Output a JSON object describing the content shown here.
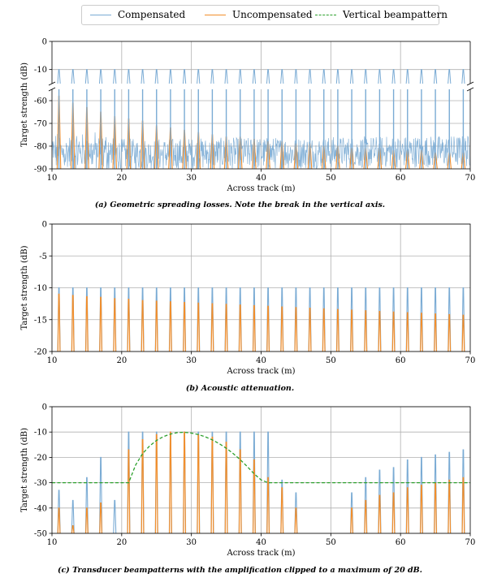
{
  "legend": {
    "items": [
      {
        "label": "Compensated",
        "color": "#7aabd4",
        "style": "solid"
      },
      {
        "label": "Uncompensated",
        "color": "#f28e2b",
        "style": "solid"
      },
      {
        "label": "Vertical beampattern",
        "color": "#2ca02c",
        "style": "dashed"
      }
    ]
  },
  "captions": {
    "a": "(a) Geometric spreading losses. Note the break in the vertical axis.",
    "b": "(b) Acoustic attenuation.",
    "c": "(c) Transducer beampatterns with the amplification clipped to a maximum of 20 dB."
  },
  "chart_data": [
    {
      "id": "a",
      "type": "line",
      "xlabel": "Across track (m)",
      "ylabel": "Target strength (dB)",
      "xlim": [
        10,
        70
      ],
      "xticks": [
        10,
        20,
        30,
        40,
        50,
        60,
        70
      ],
      "broken_axis": true,
      "upper_ylim": [
        -15,
        0
      ],
      "upper_yticks": [
        0,
        -10
      ],
      "lower_ylim": [
        -90,
        -55
      ],
      "lower_yticks": [
        -60,
        -70,
        -80,
        -90
      ],
      "grid": true,
      "target_positions": [
        11,
        13,
        15,
        17,
        19,
        21,
        23,
        25,
        27,
        29,
        31,
        33,
        35,
        37,
        39,
        41,
        43,
        45,
        47,
        49,
        51,
        53,
        55,
        57,
        59,
        61,
        63,
        65,
        67,
        69
      ],
      "compensated_peak": -10,
      "compensated_noise_range": [
        -90,
        -73
      ],
      "uncompensated_peaks": [
        -58,
        -61,
        -63,
        -65,
        -67,
        -68,
        -69,
        -71,
        -72,
        -73,
        -74,
        -75,
        -76,
        -76,
        -77,
        -78,
        -78,
        -79,
        -79,
        -80,
        -80,
        -81,
        -81,
        -81,
        -82,
        -82,
        -82,
        -83,
        -83,
        -83
      ]
    },
    {
      "id": "b",
      "type": "line",
      "xlabel": "Across track (m)",
      "ylabel": "Target strength (dB)",
      "xlim": [
        10,
        70
      ],
      "xticks": [
        10,
        20,
        30,
        40,
        50,
        60,
        70
      ],
      "ylim": [
        -20,
        0
      ],
      "yticks": [
        0,
        -5,
        -10,
        -15,
        -20
      ],
      "grid": true,
      "target_positions": [
        11,
        13,
        15,
        17,
        19,
        21,
        23,
        25,
        27,
        29,
        31,
        33,
        35,
        37,
        39,
        41,
        43,
        45,
        47,
        49,
        51,
        53,
        55,
        57,
        59,
        61,
        63,
        65,
        67,
        69
      ],
      "compensated_peak": -10,
      "uncompensated_peaks": [
        -11.0,
        -11.2,
        -11.4,
        -11.5,
        -11.7,
        -11.8,
        -12.0,
        -12.1,
        -12.2,
        -12.3,
        -12.4,
        -12.5,
        -12.6,
        -12.7,
        -12.8,
        -12.9,
        -13.0,
        -13.1,
        -13.2,
        -13.3,
        -13.4,
        -13.5,
        -13.6,
        -13.7,
        -13.8,
        -13.9,
        -14.0,
        -14.1,
        -14.2,
        -14.3
      ]
    },
    {
      "id": "c",
      "type": "line",
      "xlabel": "Across track (m)",
      "ylabel": "Target strength (dB)",
      "xlim": [
        10,
        70
      ],
      "xticks": [
        10,
        20,
        30,
        40,
        50,
        60,
        70
      ],
      "ylim": [
        -50,
        0
      ],
      "yticks": [
        0,
        -10,
        -20,
        -30,
        -40,
        -50
      ],
      "grid": true,
      "target_positions": [
        11,
        13,
        15,
        17,
        19,
        21,
        23,
        25,
        27,
        29,
        31,
        33,
        35,
        37,
        39,
        41,
        43,
        45,
        47,
        49,
        51,
        53,
        55,
        57,
        59,
        61,
        63,
        65,
        67,
        69
      ],
      "compensated_peaks": [
        -33,
        -37,
        -28,
        -20,
        -37,
        -10,
        -10,
        -10,
        -10,
        -10,
        -10,
        -10,
        -10,
        -10,
        -10,
        -10,
        -29,
        -34,
        -50,
        -50,
        -50,
        -34,
        -28,
        -25,
        -24,
        -21,
        -20,
        -19,
        -18,
        -17
      ],
      "uncompensated_peaks": [
        -40,
        -47,
        -40,
        -38,
        -50,
        -17,
        -13,
        -11,
        -10,
        -10,
        -11,
        -12,
        -14,
        -17,
        -21,
        -28,
        -32,
        -40,
        -50,
        -50,
        -50,
        -40,
        -37,
        -35,
        -34,
        -32,
        -31,
        -30,
        -29,
        -28
      ],
      "beampattern": {
        "flat_level": -30,
        "x": [
          10,
          21,
          22,
          23,
          24,
          25,
          26,
          27,
          28,
          29,
          30,
          31,
          32,
          33,
          34,
          35,
          36,
          37,
          38,
          39,
          40,
          41,
          42,
          70
        ],
        "y": [
          -30,
          -30,
          -23,
          -18.5,
          -15.5,
          -13.3,
          -11.8,
          -10.8,
          -10.2,
          -10.1,
          -10.4,
          -11.0,
          -11.9,
          -13.1,
          -14.6,
          -16.4,
          -18.5,
          -20.9,
          -23.6,
          -26.5,
          -28.9,
          -30,
          -30,
          -30
        ]
      }
    }
  ]
}
